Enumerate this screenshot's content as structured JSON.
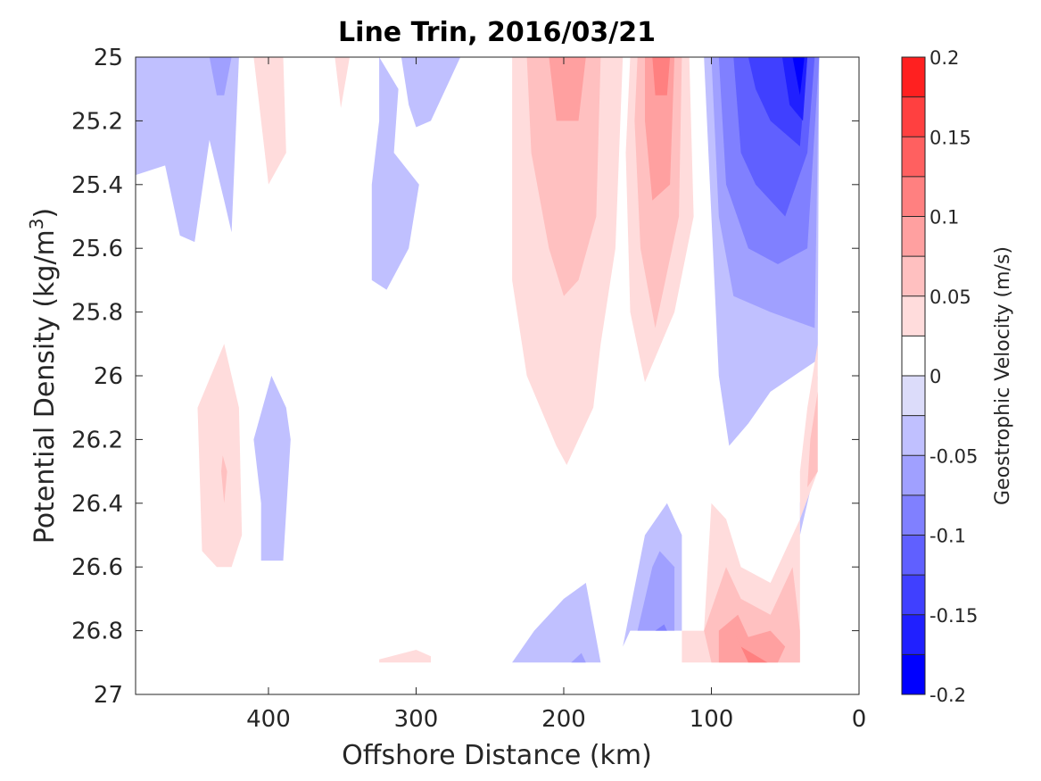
{
  "chart_data": {
    "type": "contour",
    "title": "Line Trin, 2016/03/21",
    "xlabel": "Offshore Distance (km)",
    "ylabel_main": "Potential Density (kg/m",
    "ylabel_sup": "3",
    "ylabel_close": ")",
    "xlim": [
      490,
      0
    ],
    "ylim": [
      25,
      27
    ],
    "y_reversed": true,
    "x_ticks": [
      400,
      300,
      200,
      100,
      0
    ],
    "x_tick_labels": [
      "400",
      "300",
      "200",
      "100",
      "0"
    ],
    "y_ticks": [
      25,
      25.2,
      25.4,
      25.6,
      25.8,
      26,
      26.2,
      26.4,
      26.6,
      26.8,
      27
    ],
    "y_tick_labels": [
      "25",
      "25.2",
      "25.4",
      "25.6",
      "25.8",
      "26",
      "26.2",
      "26.4",
      "26.6",
      "26.8",
      "27"
    ],
    "grid": false,
    "colorbar": {
      "label": "Geostrophic Velocity (m/s)",
      "range": [
        -0.2,
        0.2
      ],
      "levels": [
        -0.2,
        -0.175,
        -0.15,
        -0.125,
        -0.1,
        -0.075,
        -0.05,
        -0.025,
        0,
        0.025,
        0.05,
        0.075,
        0.1,
        0.125,
        0.15,
        0.175,
        0.2
      ],
      "colors": [
        "#0000ff",
        "#2020ff",
        "#4040ff",
        "#6060ff",
        "#8080ff",
        "#a0a0ff",
        "#c0c0ff",
        "#dcdcfa",
        "#ffffff",
        "#ffdcdc",
        "#ffc0c0",
        "#ffa0a0",
        "#ff8080",
        "#ff6060",
        "#ff4040",
        "#ff2020"
      ],
      "tick_values": [
        0.2,
        0.15,
        0.1,
        0.05,
        0,
        -0.05,
        -0.1,
        -0.15,
        -0.2
      ],
      "tick_labels": [
        "0.2",
        "0.15",
        "0.1",
        "0.05",
        "0",
        "-0.05",
        "-0.1",
        "-0.15",
        "-0.2"
      ]
    },
    "regions": [
      {
        "level": -0.025,
        "points": [
          [
            490,
            25.37
          ],
          [
            470,
            25.34
          ],
          [
            460,
            25.56
          ],
          [
            450,
            25.58
          ],
          [
            440,
            25.26
          ],
          [
            430,
            25.45
          ],
          [
            425,
            25.55
          ],
          [
            420,
            25.0
          ],
          [
            490,
            25.0
          ]
        ]
      },
      {
        "level": -0.05,
        "points": [
          [
            440,
            25.0
          ],
          [
            425,
            25.0
          ],
          [
            430,
            25.12
          ],
          [
            435,
            25.12
          ]
        ]
      },
      {
        "level": 0.025,
        "points": [
          [
            410,
            25.0
          ],
          [
            390,
            25.0
          ],
          [
            388,
            25.3
          ],
          [
            400,
            25.4
          ]
        ]
      },
      {
        "level": 0.025,
        "points": [
          [
            355,
            25.0
          ],
          [
            345,
            25.0
          ],
          [
            351,
            25.16
          ]
        ]
      },
      {
        "level": -0.025,
        "points": [
          [
            325,
            25.0
          ],
          [
            312,
            25.1
          ],
          [
            315,
            25.3
          ],
          [
            298,
            25.4
          ],
          [
            305,
            25.6
          ],
          [
            320,
            25.73
          ],
          [
            330,
            25.7
          ],
          [
            330,
            25.4
          ],
          [
            325,
            25.2
          ]
        ]
      },
      {
        "level": -0.025,
        "points": [
          [
            310,
            25.0
          ],
          [
            270,
            25.0
          ],
          [
            290,
            25.2
          ],
          [
            300,
            25.22
          ],
          [
            305,
            25.15
          ]
        ]
      },
      {
        "level": 0.025,
        "points": [
          [
            235,
            25.0
          ],
          [
            160,
            25.0
          ],
          [
            165,
            25.6
          ],
          [
            175,
            25.9
          ],
          [
            180,
            26.1
          ],
          [
            190,
            26.2
          ],
          [
            198,
            26.28
          ],
          [
            205,
            26.22
          ],
          [
            225,
            26.0
          ],
          [
            235,
            25.7
          ]
        ]
      },
      {
        "level": 0.05,
        "points": [
          [
            225,
            25.0
          ],
          [
            175,
            25.0
          ],
          [
            178,
            25.5
          ],
          [
            190,
            25.7
          ],
          [
            200,
            25.75
          ],
          [
            210,
            25.6
          ],
          [
            222,
            25.3
          ]
        ]
      },
      {
        "level": 0.075,
        "points": [
          [
            210,
            25.0
          ],
          [
            185,
            25.0
          ],
          [
            190,
            25.2
          ],
          [
            205,
            25.2
          ]
        ]
      },
      {
        "level": 0.025,
        "points": [
          [
            155,
            25.0
          ],
          [
            115,
            25.0
          ],
          [
            112,
            25.5
          ],
          [
            125,
            25.8
          ],
          [
            145,
            26.02
          ],
          [
            155,
            25.8
          ],
          [
            158,
            25.3
          ]
        ]
      },
      {
        "level": 0.05,
        "points": [
          [
            150,
            25.0
          ],
          [
            120,
            25.0
          ],
          [
            122,
            25.5
          ],
          [
            138,
            25.85
          ],
          [
            148,
            25.6
          ],
          [
            152,
            25.2
          ]
        ]
      },
      {
        "level": 0.075,
        "points": [
          [
            145,
            25.0
          ],
          [
            125,
            25.0
          ],
          [
            128,
            25.4
          ],
          [
            140,
            25.45
          ],
          [
            145,
            25.2
          ]
        ]
      },
      {
        "level": 0.1,
        "points": [
          [
            140,
            25.0
          ],
          [
            128,
            25.0
          ],
          [
            130,
            25.12
          ],
          [
            138,
            25.12
          ]
        ]
      },
      {
        "level": -0.025,
        "points": [
          [
            105,
            25.0
          ],
          [
            27,
            25.0
          ],
          [
            28,
            25.95
          ],
          [
            60,
            26.05
          ],
          [
            75,
            26.15
          ],
          [
            88,
            26.22
          ],
          [
            95,
            26.0
          ],
          [
            100,
            25.5
          ]
        ]
      },
      {
        "level": -0.05,
        "points": [
          [
            100,
            25.0
          ],
          [
            27,
            25.0
          ],
          [
            30,
            25.85
          ],
          [
            60,
            25.8
          ],
          [
            85,
            25.75
          ],
          [
            95,
            25.5
          ]
        ]
      },
      {
        "level": -0.075,
        "points": [
          [
            95,
            25.0
          ],
          [
            27,
            25.0
          ],
          [
            35,
            25.6
          ],
          [
            55,
            25.65
          ],
          [
            75,
            25.6
          ],
          [
            90,
            25.4
          ]
        ]
      },
      {
        "level": -0.1,
        "points": [
          [
            85,
            25.0
          ],
          [
            30,
            25.0
          ],
          [
            35,
            25.3
          ],
          [
            50,
            25.5
          ],
          [
            70,
            25.4
          ],
          [
            80,
            25.3
          ]
        ]
      },
      {
        "level": -0.125,
        "points": [
          [
            75,
            25.0
          ],
          [
            35,
            25.0
          ],
          [
            40,
            25.28
          ],
          [
            60,
            25.2
          ],
          [
            70,
            25.1
          ]
        ]
      },
      {
        "level": -0.15,
        "points": [
          [
            52,
            25.0
          ],
          [
            35,
            25.0
          ],
          [
            38,
            25.2
          ],
          [
            47,
            25.15
          ]
        ]
      },
      {
        "level": -0.175,
        "points": [
          [
            45,
            25.0
          ],
          [
            37,
            25.0
          ],
          [
            40,
            25.12
          ]
        ]
      },
      {
        "level": 0.025,
        "points": [
          [
            430,
            25.9
          ],
          [
            420,
            26.1
          ],
          [
            418,
            26.5
          ],
          [
            425,
            26.6
          ],
          [
            435,
            26.6
          ],
          [
            445,
            26.55
          ],
          [
            448,
            26.1
          ]
        ]
      },
      {
        "level": 0.05,
        "points": [
          [
            431,
            26.25
          ],
          [
            428,
            26.3
          ],
          [
            430,
            26.4
          ],
          [
            432,
            26.3
          ]
        ]
      },
      {
        "level": -0.025,
        "points": [
          [
            398,
            26.0
          ],
          [
            410,
            26.2
          ],
          [
            405,
            26.4
          ],
          [
            405,
            26.58
          ],
          [
            390,
            26.58
          ],
          [
            385,
            26.2
          ],
          [
            388,
            26.1
          ]
        ]
      },
      {
        "level": 0.025,
        "points": [
          [
            325,
            26.89
          ],
          [
            300,
            26.86
          ],
          [
            290,
            26.88
          ],
          [
            290,
            26.9
          ],
          [
            325,
            26.9
          ]
        ]
      },
      {
        "level": -0.025,
        "points": [
          [
            235,
            26.9
          ],
          [
            220,
            26.8
          ],
          [
            200,
            26.7
          ],
          [
            185,
            26.65
          ],
          [
            175,
            26.9
          ]
        ]
      },
      {
        "level": -0.05,
        "points": [
          [
            195,
            26.9
          ],
          [
            185,
            26.9
          ],
          [
            188,
            26.87
          ]
        ]
      },
      {
        "level": -0.025,
        "points": [
          [
            160,
            26.85
          ],
          [
            145,
            26.5
          ],
          [
            130,
            26.4
          ],
          [
            120,
            26.5
          ],
          [
            120,
            26.8
          ],
          [
            155,
            26.8
          ]
        ]
      },
      {
        "level": -0.05,
        "points": [
          [
            150,
            26.8
          ],
          [
            140,
            26.6
          ],
          [
            135,
            26.55
          ],
          [
            125,
            26.6
          ],
          [
            125,
            26.8
          ]
        ]
      },
      {
        "level": -0.075,
        "points": [
          [
            138,
            26.8
          ],
          [
            130,
            26.8
          ],
          [
            132,
            26.78
          ]
        ]
      },
      {
        "level": 0.025,
        "points": [
          [
            105,
            26.8
          ],
          [
            100,
            26.4
          ],
          [
            90,
            26.45
          ],
          [
            80,
            26.6
          ],
          [
            60,
            26.65
          ],
          [
            40,
            26.45
          ],
          [
            40,
            26.9
          ],
          [
            120,
            26.9
          ],
          [
            120,
            26.8
          ]
        ]
      },
      {
        "level": 0.05,
        "points": [
          [
            105,
            26.8
          ],
          [
            90,
            26.6
          ],
          [
            80,
            26.7
          ],
          [
            60,
            26.75
          ],
          [
            45,
            26.6
          ],
          [
            40,
            26.8
          ],
          [
            40,
            26.9
          ],
          [
            100,
            26.9
          ]
        ]
      },
      {
        "level": 0.075,
        "points": [
          [
            95,
            26.8
          ],
          [
            82,
            26.75
          ],
          [
            75,
            26.82
          ],
          [
            60,
            26.8
          ],
          [
            50,
            26.85
          ],
          [
            55,
            26.9
          ],
          [
            95,
            26.9
          ]
        ]
      },
      {
        "level": 0.1,
        "points": [
          [
            85,
            26.8
          ],
          [
            75,
            26.9
          ],
          [
            62,
            26.9
          ],
          [
            80,
            26.85
          ]
        ]
      },
      {
        "level": -0.025,
        "points": [
          [
            40,
            26.5
          ],
          [
            30,
            26.3
          ],
          [
            28,
            26.0
          ],
          [
            40,
            26.4
          ]
        ]
      },
      {
        "level": 0.025,
        "points": [
          [
            40,
            26.45
          ],
          [
            28,
            26.3
          ],
          [
            28,
            25.9
          ],
          [
            35,
            26.1
          ],
          [
            40,
            26.3
          ]
        ]
      },
      {
        "level": 0.05,
        "points": [
          [
            35,
            26.35
          ],
          [
            28,
            26.3
          ],
          [
            28,
            26.05
          ],
          [
            33,
            26.2
          ]
        ]
      }
    ]
  }
}
